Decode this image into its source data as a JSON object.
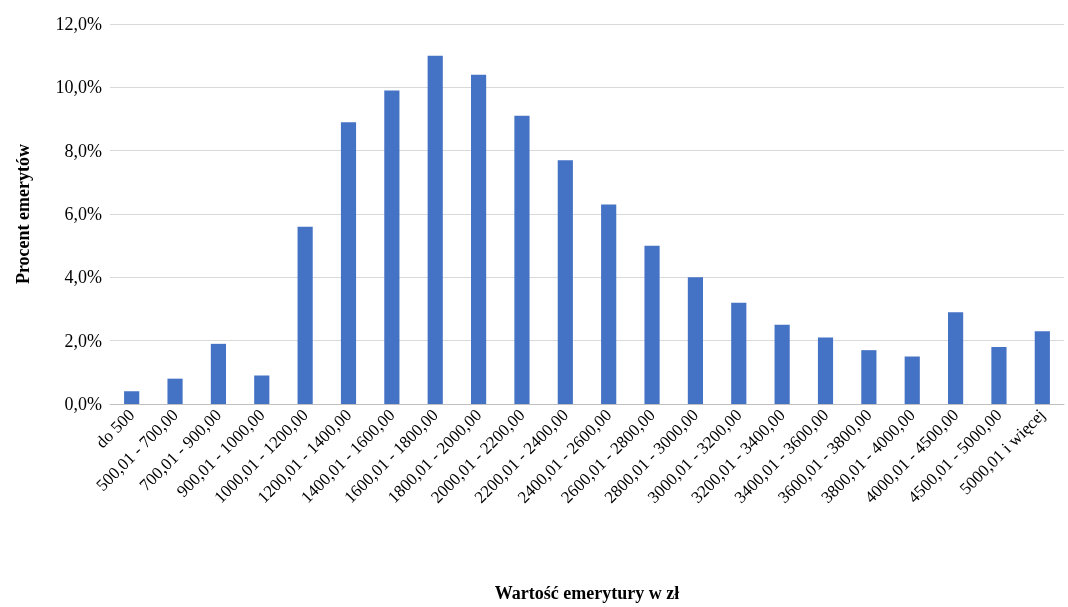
{
  "chart_data": {
    "type": "bar",
    "xlabel": "Wartość emerytury w zł",
    "ylabel": "Procent emerytów",
    "categories": [
      "do 500",
      "500,01 - 700,00",
      "700,01 - 900,00",
      "900,01 - 1000,00",
      "1000,01 - 1200,00",
      "1200,01 - 1400,00",
      "1400,01 - 1600,00",
      "1600,01 - 1800,00",
      "1800,01 - 2000,00",
      "2000,01 - 2200,00",
      "2200,01 - 2400,00",
      "2400,01 - 2600,00",
      "2600,01 - 2800,00",
      "2800,01 - 3000,00",
      "3000,01 - 3200,00",
      "3200,01 - 3400,00",
      "3400,01 - 3600,00",
      "3600,01 - 3800,00",
      "3800,01 - 4000,00",
      "4000,01 - 4500,00",
      "4500,01 - 5000,00",
      "5000,01 i więcej"
    ],
    "values": [
      0.4,
      0.8,
      1.9,
      0.9,
      5.6,
      8.9,
      9.9,
      11.0,
      10.4,
      9.1,
      7.7,
      6.3,
      5.0,
      4.0,
      3.2,
      2.5,
      2.1,
      1.7,
      1.5,
      2.9,
      1.8,
      2.3
    ],
    "color": "#4472c4",
    "ylim": [
      0,
      12
    ],
    "yticks": [
      {
        "value": 0,
        "label": "0,0%"
      },
      {
        "value": 2,
        "label": "2,0%"
      },
      {
        "value": 4,
        "label": "4,0%"
      },
      {
        "value": 6,
        "label": "6,0%"
      },
      {
        "value": 8,
        "label": "8,0%"
      },
      {
        "value": 10,
        "label": "10,0%"
      },
      {
        "value": 12,
        "label": "12,0%"
      }
    ],
    "grid": "y"
  }
}
